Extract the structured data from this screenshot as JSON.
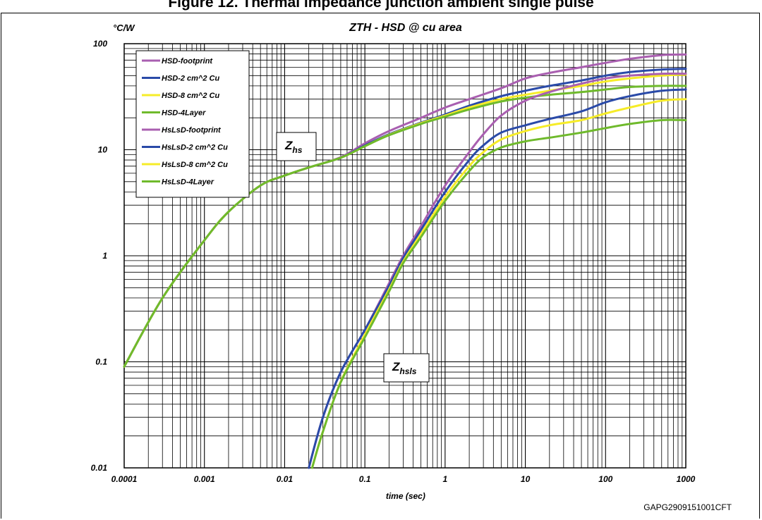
{
  "header": {
    "truncated_caption": "Figure 12. Thermal impedance junction ambient single pulse"
  },
  "figure_code": "GAPG2909151001CFT",
  "colors": {
    "magenta": "#a95fb0",
    "blue": "#2a4aa8",
    "yellow": "#f6ec28",
    "green": "#6fba2c"
  },
  "chart_data": {
    "type": "line",
    "title": "ZTH - HSD @ cu area",
    "ylabel": "°C/W",
    "xlabel": "time (sec)",
    "xscale": "log",
    "yscale": "log",
    "xlim": [
      0.0001,
      1000
    ],
    "ylim": [
      0.01,
      100
    ],
    "grid": true,
    "legend": "top-left",
    "xtick_labels": [
      "0.0001",
      "0.001",
      "0.01",
      "0.1",
      "1",
      "10",
      "100",
      "1000"
    ],
    "ytick_labels": [
      "0.01",
      "0.1",
      "1",
      "10",
      "100"
    ],
    "annotations": [
      {
        "text": "Z",
        "sub": "hs"
      },
      {
        "text": "Z",
        "sub": "hsls"
      }
    ],
    "series": [
      {
        "name": "HSD-footprint",
        "color": "magenta",
        "x": [
          0.0001,
          0.0003,
          0.001,
          0.002,
          0.005,
          0.01,
          0.02,
          0.05,
          0.1,
          0.2,
          0.5,
          1,
          2,
          5,
          10,
          20,
          50,
          100,
          200,
          500,
          1000
        ],
        "y": [
          0.09,
          0.4,
          1.4,
          2.6,
          4.6,
          5.7,
          6.8,
          8.5,
          11.5,
          15,
          20,
          25,
          30,
          38,
          47,
          53,
          60,
          66,
          72,
          78,
          79
        ]
      },
      {
        "name": "HSD-2 cm^2 Cu",
        "color": "blue",
        "x": [
          0.0001,
          0.0003,
          0.001,
          0.002,
          0.005,
          0.01,
          0.02,
          0.05,
          0.1,
          0.2,
          0.5,
          1,
          2,
          5,
          10,
          20,
          50,
          100,
          200,
          500,
          1000
        ],
        "y": [
          0.09,
          0.4,
          1.4,
          2.6,
          4.6,
          5.7,
          6.8,
          8.4,
          11,
          14,
          18,
          21.5,
          26,
          32,
          36,
          40,
          45,
          50,
          54,
          57,
          58
        ]
      },
      {
        "name": "HSD-8 cm^2 Cu",
        "color": "yellow",
        "x": [
          0.0001,
          0.0003,
          0.001,
          0.002,
          0.005,
          0.01,
          0.02,
          0.05,
          0.1,
          0.2,
          0.5,
          1,
          2,
          5,
          10,
          20,
          50,
          100,
          200,
          500,
          1000
        ],
        "y": [
          0.09,
          0.4,
          1.4,
          2.6,
          4.6,
          5.7,
          6.8,
          8.4,
          10.8,
          13.8,
          17.8,
          21,
          25,
          30,
          33,
          36,
          40,
          44,
          47,
          50,
          51
        ]
      },
      {
        "name": "HSD-4Layer",
        "color": "green",
        "x": [
          0.0001,
          0.0003,
          0.001,
          0.002,
          0.005,
          0.01,
          0.02,
          0.05,
          0.1,
          0.2,
          0.5,
          1,
          2,
          5,
          10,
          20,
          50,
          100,
          200,
          500,
          1000
        ],
        "y": [
          0.09,
          0.4,
          1.4,
          2.6,
          4.6,
          5.7,
          6.8,
          8.4,
          10.8,
          13.7,
          17.5,
          20.5,
          24,
          28.5,
          31,
          33,
          35,
          37,
          39,
          40,
          40
        ]
      },
      {
        "name": "HsLsD-footprint",
        "color": "magenta",
        "x": [
          0.02,
          0.03,
          0.05,
          0.1,
          0.2,
          0.3,
          0.5,
          1,
          2,
          3,
          5,
          10,
          20,
          50,
          100,
          200,
          500,
          1000
        ],
        "y": [
          0.01,
          0.03,
          0.08,
          0.2,
          0.55,
          1.0,
          1.9,
          4.6,
          9.5,
          14,
          21,
          29,
          35,
          42,
          47,
          50,
          52,
          52
        ]
      },
      {
        "name": "HsLsD-2 cm^2 Cu",
        "color": "blue",
        "x": [
          0.02,
          0.03,
          0.05,
          0.1,
          0.2,
          0.3,
          0.5,
          1,
          2,
          3,
          5,
          10,
          20,
          50,
          100,
          200,
          500,
          1000
        ],
        "y": [
          0.01,
          0.03,
          0.08,
          0.2,
          0.52,
          0.95,
          1.75,
          4.0,
          8.0,
          11,
          14.5,
          17,
          19.5,
          23,
          28,
          32,
          36,
          37
        ]
      },
      {
        "name": "HsLsD-8 cm^2 Cu",
        "color": "yellow",
        "x": [
          0.022,
          0.03,
          0.05,
          0.1,
          0.2,
          0.3,
          0.5,
          1,
          2,
          3,
          5,
          10,
          20,
          50,
          100,
          200,
          500,
          1000
        ],
        "y": [
          0.01,
          0.022,
          0.065,
          0.18,
          0.48,
          0.88,
          1.6,
          3.6,
          7.0,
          9.5,
          12.5,
          15,
          17,
          19,
          22,
          25,
          29,
          30
        ]
      },
      {
        "name": "HsLsD-4Layer",
        "color": "green",
        "x": [
          0.022,
          0.03,
          0.05,
          0.1,
          0.2,
          0.3,
          0.5,
          1,
          2,
          3,
          5,
          10,
          20,
          50,
          100,
          200,
          500,
          1000
        ],
        "y": [
          0.01,
          0.022,
          0.064,
          0.17,
          0.46,
          0.85,
          1.5,
          3.3,
          6.3,
          8.5,
          10.5,
          12,
          13,
          14.5,
          16,
          17.5,
          19,
          19
        ]
      }
    ]
  }
}
